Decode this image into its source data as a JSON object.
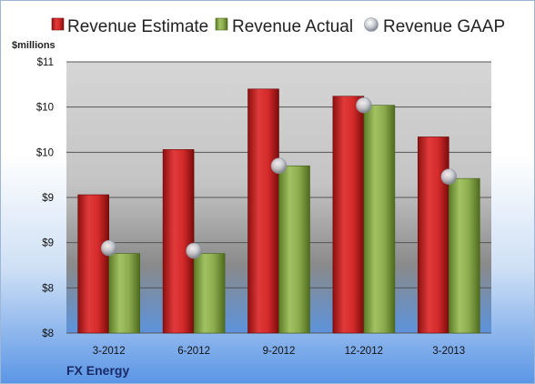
{
  "chart_data": {
    "type": "bar",
    "unit_label": "$millions",
    "categories": [
      "3-2012",
      "6-2012",
      "9-2012",
      "12-2012",
      "3-2013"
    ],
    "series": [
      {
        "name": "Revenue Estimate",
        "kind": "bar",
        "color": "#d42a2a",
        "values": [
          9.28,
          9.78,
          10.45,
          10.37,
          9.92
        ]
      },
      {
        "name": "Revenue Actual",
        "kind": "bar",
        "color": "#8cab4e",
        "values": [
          8.63,
          8.63,
          9.6,
          10.27,
          9.46
        ]
      },
      {
        "name": "Revenue GAAP",
        "kind": "marker",
        "color": "#b8bcc4",
        "values": [
          8.69,
          8.66,
          9.6,
          10.27,
          9.48
        ]
      }
    ],
    "ylim": [
      7.75,
      10.75
    ],
    "yticks": [
      7.75,
      8.25,
      8.75,
      9.25,
      9.75,
      10.25,
      10.75
    ],
    "ytick_labels": [
      "$8",
      "$8",
      "$9",
      "$9",
      "$10",
      "$10",
      "$11"
    ],
    "grid": true,
    "legend_position": "top"
  },
  "company": "FX Energy"
}
